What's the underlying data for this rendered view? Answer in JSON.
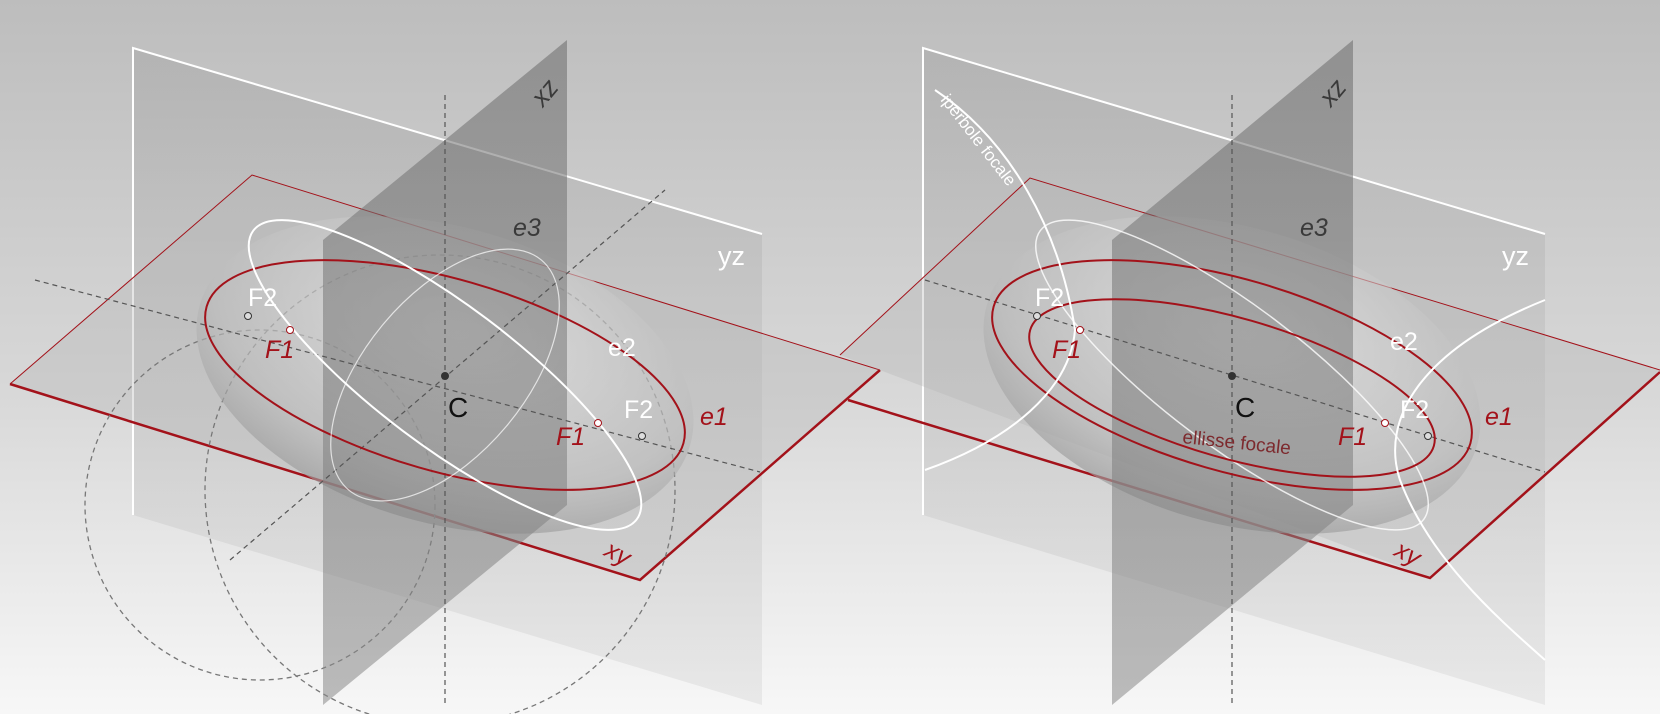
{
  "panels": [
    {
      "labels": {
        "plane_xz": "xz",
        "plane_yz": "yz",
        "plane_xy": "xy",
        "center": "C",
        "e1": "e1",
        "e2": "e2",
        "e3": "e3",
        "f1_a": "F1",
        "f2_a": "F2",
        "f1_b": "F1",
        "f2_b": "F2"
      }
    },
    {
      "labels": {
        "plane_xz": "xz",
        "plane_yz": "yz",
        "plane_xy": "xy",
        "center": "C",
        "e1": "e1",
        "e2": "e2",
        "e3": "e3",
        "f1_a": "F1",
        "f2_a": "F2",
        "f1_b": "F1",
        "f2_b": "F2",
        "hyperbola": "iperbole focale",
        "ellipse": "ellisse focale"
      }
    }
  ],
  "colors": {
    "background_top": "#bdbdbd",
    "background_bottom": "#f7f7f7",
    "accent_red": "#a3121a",
    "line_white": "#ffffff",
    "plane_dark": "#6f6f6f"
  }
}
